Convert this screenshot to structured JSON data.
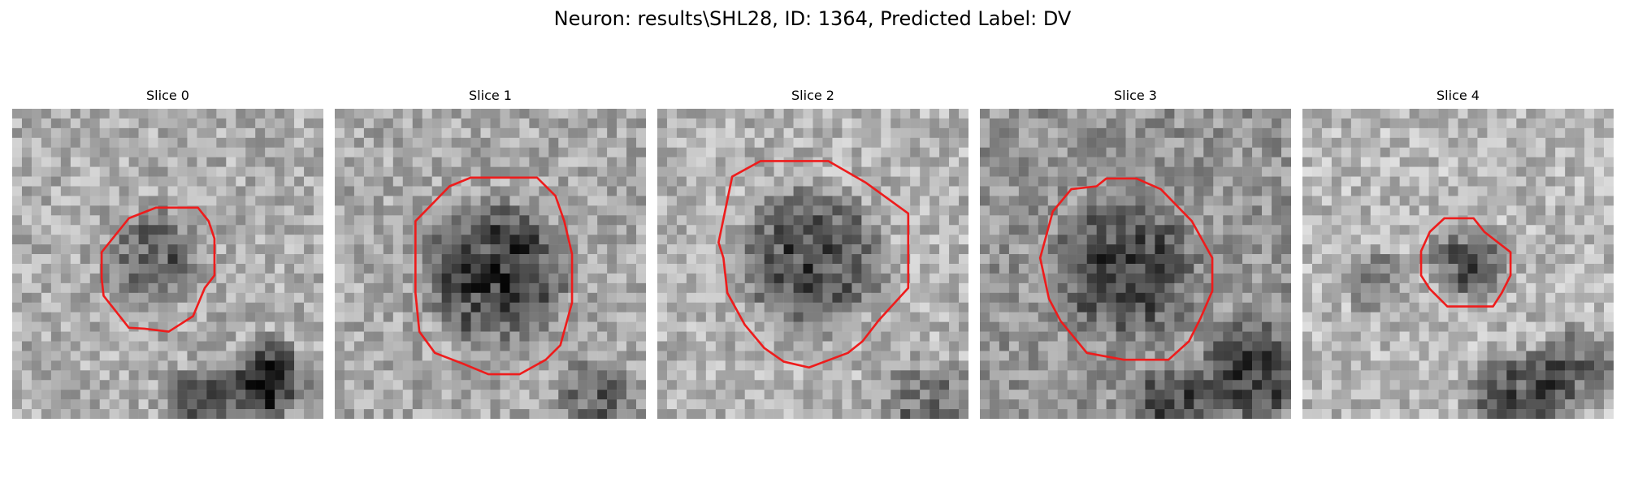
{
  "figure": {
    "title": "Neuron: results\\SHL28, ID: 1364, Predicted Label: DV"
  },
  "contour_color": "#ee1c1c",
  "slices": [
    {
      "title": "Slice 0"
    },
    {
      "title": "Slice 1"
    },
    {
      "title": "Slice 2"
    },
    {
      "title": "Slice 3"
    },
    {
      "title": "Slice 4"
    }
  ]
}
